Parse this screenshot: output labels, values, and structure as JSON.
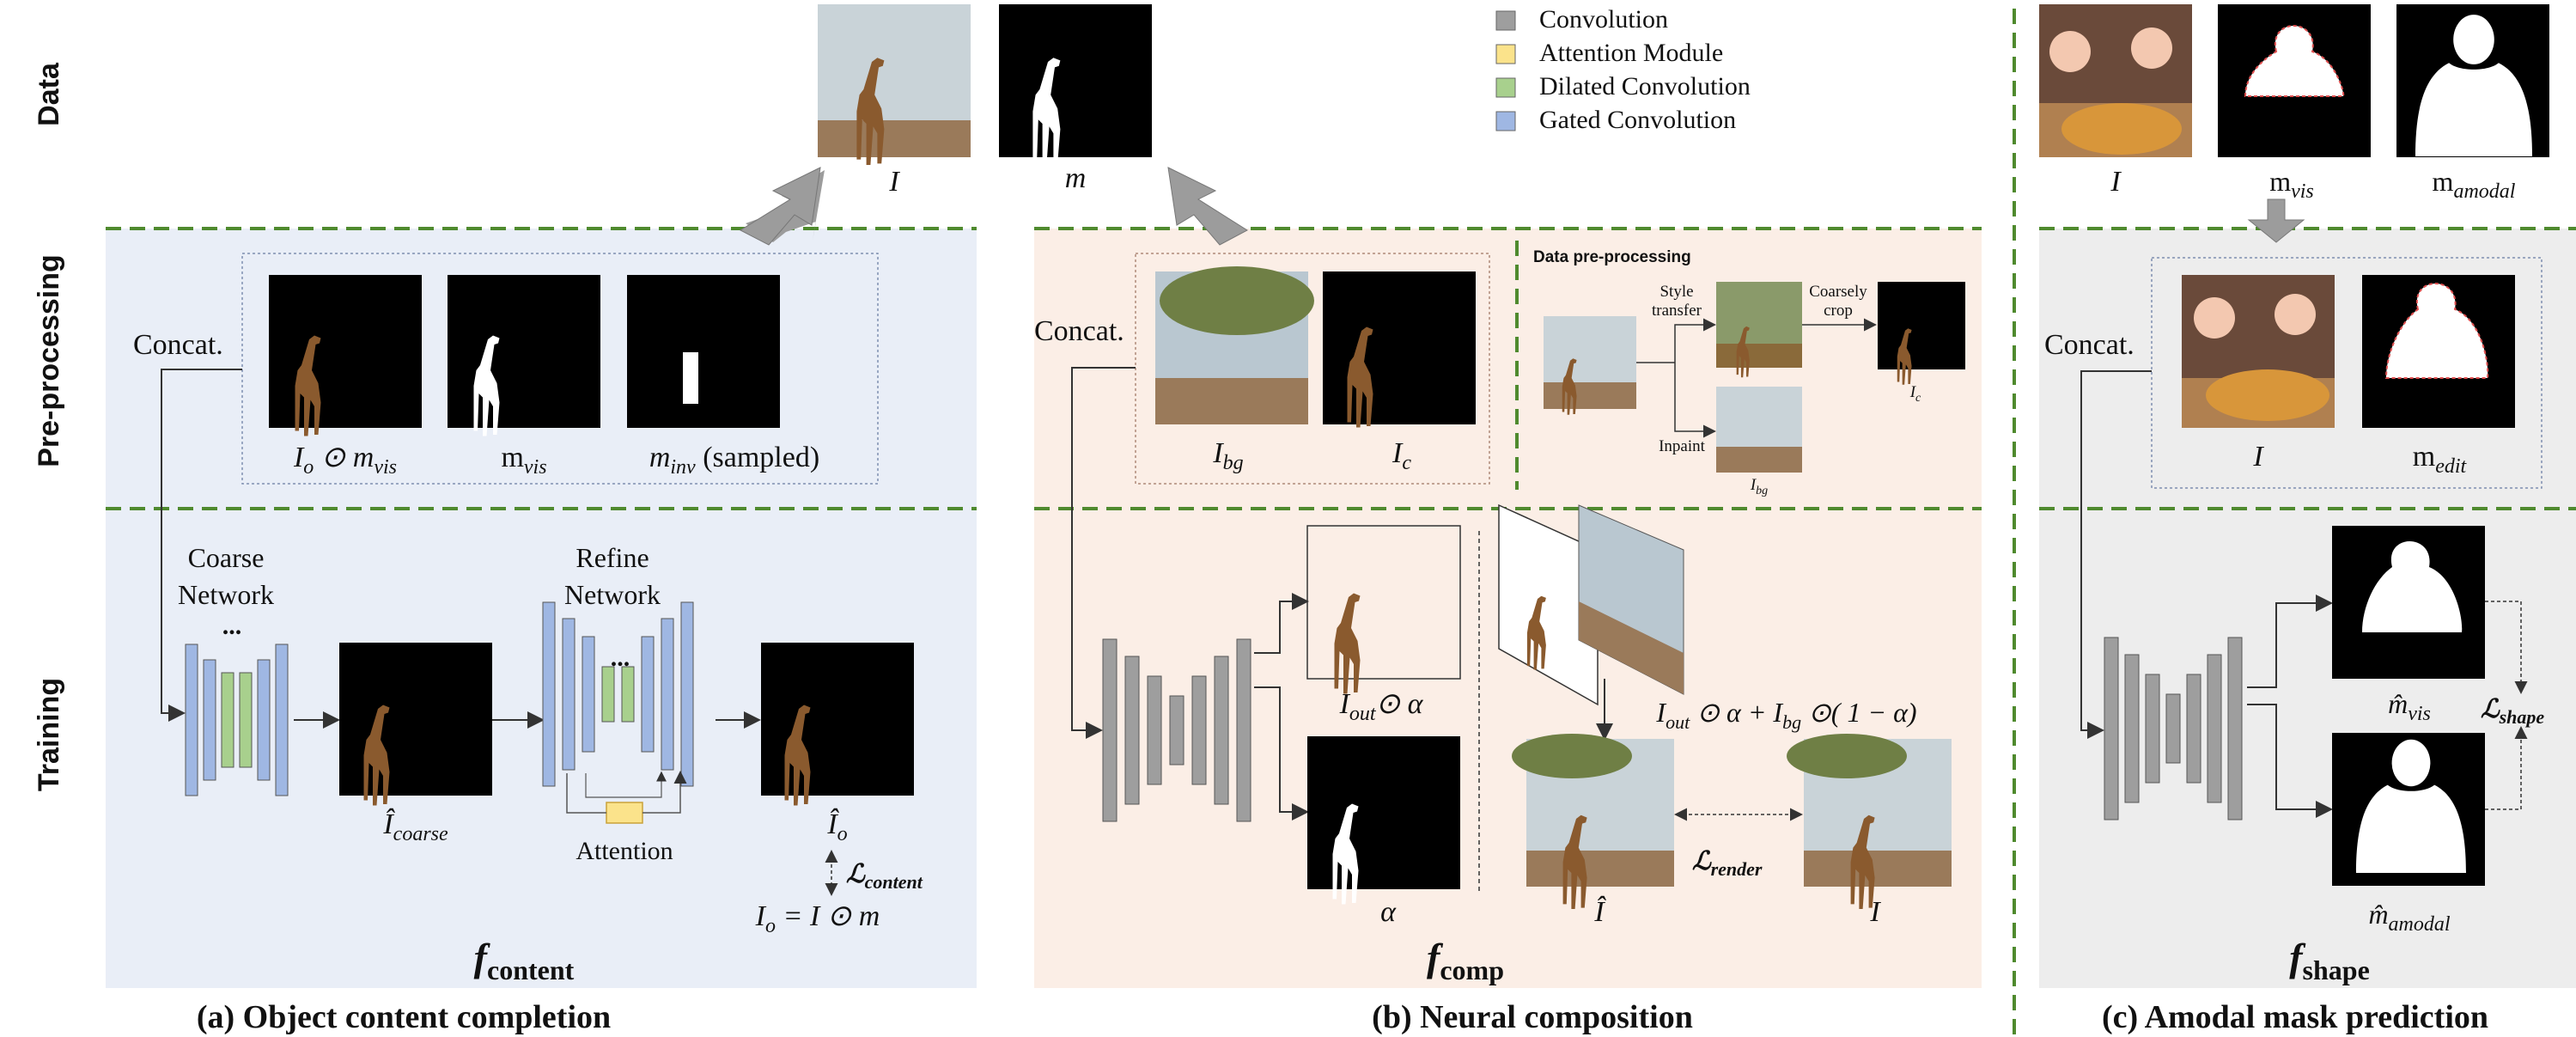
{
  "rows": {
    "data": "Data",
    "preprocessing": "Pre-processing",
    "training": "Training"
  },
  "legend": [
    {
      "label": "Convolution",
      "color": "#9e9e9e"
    },
    {
      "label": "Attention Module",
      "color": "#fbe38b"
    },
    {
      "label": "Dilated Convolution",
      "color": "#a8d08d"
    },
    {
      "label": "Gated Convolution",
      "color": "#9fb7e3"
    }
  ],
  "colors": {
    "panel_a_bg": "#e9eef7",
    "panel_b_bg": "#fbeee6",
    "panel_c_bg": "#ededed",
    "dashed_line": "#4f8a2e",
    "giraffe": "#8a5a2e",
    "sky": "#c9d3d8",
    "ground": "#9a7a5a",
    "tree": "#7a8a4a"
  },
  "data_row": {
    "image_label": "I",
    "mask_label": "m",
    "amodal_image_label": "I",
    "vis_label": "m",
    "vis_sub": "vis",
    "amodal_label": "m",
    "amodal_sub": "amodal"
  },
  "panel_a": {
    "concat": "Concat.",
    "inputs": [
      {
        "label": "I",
        "sub": "o",
        "extra": " ⊙ m",
        "extra_sub": "vis"
      },
      {
        "label": "m",
        "sub": "vis"
      },
      {
        "label": "m",
        "sub": "inv",
        "suffix": " (sampled)"
      }
    ],
    "coarse_title_1": "Coarse",
    "coarse_title_2": "Network",
    "refine_title_1": "Refine",
    "refine_title_2": "Network",
    "dots": "...",
    "coarse_out": "Î",
    "coarse_out_sub": "coarse",
    "attention": "Attention",
    "final_out": "Î",
    "final_out_sub": "o",
    "loss": "ℒ",
    "loss_sub": "content",
    "equation": "I",
    "equation_sub": "o",
    "equation_rest": " = I ⊙ m",
    "f_label": "f",
    "f_sub": "content",
    "caption": "(a) Object content completion"
  },
  "panel_b": {
    "concat": "Concat.",
    "inputs": [
      {
        "label": "I",
        "sub": "bg"
      },
      {
        "label": "I",
        "sub": "c"
      }
    ],
    "preprocess_title": "Data pre-processing",
    "style_transfer_1": "Style",
    "style_transfer_2": "transfer",
    "coarsely_crop_1": "Coarsely",
    "coarsely_crop_2": "crop",
    "inpaint": "Inpaint",
    "small_ic": "I",
    "small_ic_sub": "c",
    "small_ibg": "I",
    "small_ibg_sub": "bg",
    "out_top": "I",
    "out_top_sub": "out",
    "out_top_rest": "⊙ α",
    "alpha": "α",
    "blend_eq_1": "I",
    "blend_eq_1_sub": "out",
    "blend_eq_2": " ⊙ α + I",
    "blend_eq_2_sub": "bg",
    "blend_eq_3": " ⊙( 1 − α)",
    "pred": "Î",
    "gt": "I",
    "loss": "ℒ",
    "loss_sub": "render",
    "f_label": "f",
    "f_sub": "comp",
    "caption": "(b) Neural composition"
  },
  "panel_c": {
    "concat": "Concat.",
    "inputs": [
      {
        "label": "I",
        "sub": ""
      },
      {
        "label": "m",
        "sub": "edit"
      }
    ],
    "out_vis": "m̂",
    "out_vis_sub": "vis",
    "out_amodal": "m̂",
    "out_amodal_sub": "amodal",
    "loss": "ℒ",
    "loss_sub": "shape",
    "f_label": "f",
    "f_sub": "shape",
    "caption": "(c) Amodal mask prediction"
  }
}
